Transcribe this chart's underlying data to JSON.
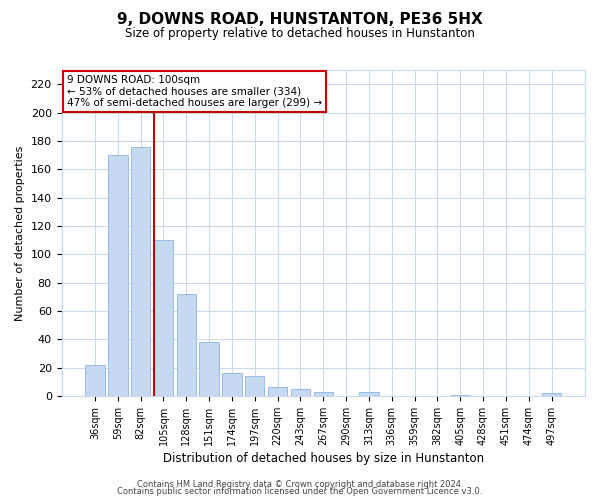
{
  "title": "9, DOWNS ROAD, HUNSTANTON, PE36 5HX",
  "subtitle": "Size of property relative to detached houses in Hunstanton",
  "xlabel": "Distribution of detached houses by size in Hunstanton",
  "ylabel": "Number of detached properties",
  "bar_labels": [
    "36sqm",
    "59sqm",
    "82sqm",
    "105sqm",
    "128sqm",
    "151sqm",
    "174sqm",
    "197sqm",
    "220sqm",
    "243sqm",
    "267sqm",
    "290sqm",
    "313sqm",
    "336sqm",
    "359sqm",
    "382sqm",
    "405sqm",
    "428sqm",
    "451sqm",
    "474sqm",
    "497sqm"
  ],
  "bar_values": [
    22,
    170,
    176,
    110,
    72,
    38,
    16,
    14,
    6,
    5,
    3,
    0,
    3,
    0,
    0,
    0,
    1,
    0,
    0,
    0,
    2
  ],
  "bar_color": "#c5d9f1",
  "bar_edge_color": "#8db4e2",
  "vline_x": 3.0,
  "vline_color": "#cc0000",
  "annotation_title": "9 DOWNS ROAD: 100sqm",
  "annotation_line1": "← 53% of detached houses are smaller (334)",
  "annotation_line2": "47% of semi-detached houses are larger (299) →",
  "annotation_box_color": "#ffffff",
  "annotation_box_edge": "#cc0000",
  "ylim": [
    0,
    230
  ],
  "yticks": [
    0,
    20,
    40,
    60,
    80,
    100,
    120,
    140,
    160,
    180,
    200,
    220
  ],
  "footer1": "Contains HM Land Registry data © Crown copyright and database right 2024.",
  "footer2": "Contains public sector information licensed under the Open Government Licence v3.0.",
  "bg_color": "#ffffff",
  "grid_color": "#c8d8ea"
}
